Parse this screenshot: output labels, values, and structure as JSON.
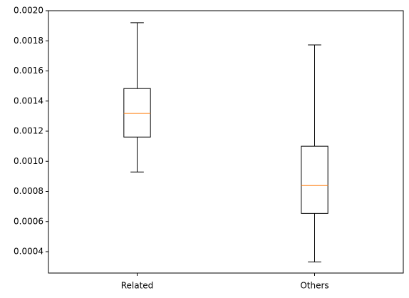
{
  "chart_data": {
    "type": "box",
    "categories": [
      "Related",
      "Others"
    ],
    "whisker_low": [
      0.000929,
      0.000332
    ],
    "q1": [
      0.001161,
      0.000654
    ],
    "median": [
      0.001318,
      0.000839
    ],
    "q3": [
      0.001483,
      0.0011
    ],
    "whisker_high": [
      0.00192,
      0.001773
    ],
    "box_color": "#000000",
    "median_color": "#ff7f0e",
    "ylim": [
      0.000258,
      0.002
    ],
    "yticks": [
      {
        "value": 0.0004,
        "label": "0.0004"
      },
      {
        "value": 0.0006,
        "label": "0.0006"
      },
      {
        "value": 0.0008,
        "label": "0.0008"
      },
      {
        "value": 0.001,
        "label": "0.0010"
      },
      {
        "value": 0.0012,
        "label": "0.0012"
      },
      {
        "value": 0.0014,
        "label": "0.0014"
      },
      {
        "value": 0.0016,
        "label": "0.0016"
      },
      {
        "value": 0.0018,
        "label": "0.0018"
      },
      {
        "value": 0.002,
        "label": "0.0020"
      }
    ]
  }
}
